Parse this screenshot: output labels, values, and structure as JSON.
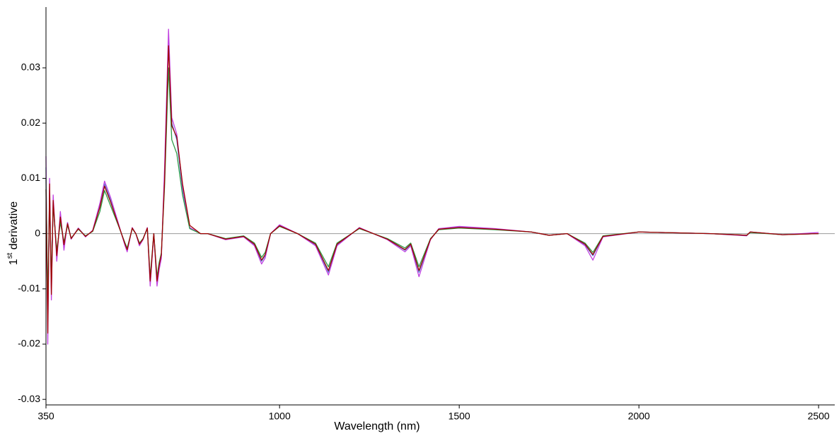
{
  "chart_data": {
    "type": "line",
    "xlabel": "Wavelength (nm)",
    "ylabel_parts": [
      "1",
      "st",
      " derivative"
    ],
    "x": [
      350,
      355,
      360,
      365,
      370,
      380,
      390,
      400,
      410,
      420,
      440,
      460,
      480,
      500,
      513,
      530,
      550,
      570,
      576,
      590,
      600,
      610,
      620,
      632,
      640,
      650,
      659,
      665,
      671,
      680,
      691,
      700,
      714,
      730,
      750,
      780,
      800,
      850,
      900,
      930,
      950,
      960,
      975,
      1000,
      1050,
      1100,
      1136,
      1160,
      1222,
      1300,
      1349,
      1365,
      1388,
      1420,
      1443,
      1500,
      1600,
      1700,
      1750,
      1800,
      1850,
      1872,
      1900,
      2000,
      2200,
      2300,
      2310,
      2400,
      2500
    ],
    "series": [
      {
        "color": "#4a86d8",
        "values": [
          0.012,
          -0.015,
          0.008,
          -0.01,
          0.006,
          -0.004,
          0.003,
          -0.002,
          0.002,
          -0.001,
          0.001,
          -0.0005,
          0.0005,
          0.005,
          0.009,
          0.006,
          0.002,
          -0.002,
          -0.003,
          0.001,
          0,
          -0.002,
          -0.001,
          0.001,
          -0.009,
          0,
          -0.009,
          -0.006,
          -0.004,
          0.01,
          0.035,
          0.02,
          0.017,
          0.008,
          0.001,
          0,
          0,
          -0.001,
          -0.0005,
          -0.002,
          -0.005,
          -0.004,
          0,
          0.0015,
          0,
          -0.002,
          -0.007,
          -0.002,
          0.001,
          -0.001,
          -0.003,
          -0.002,
          -0.007,
          -0.001,
          0.0008,
          0.0012,
          0.0008,
          0.0003,
          -0.0003,
          0,
          -0.002,
          -0.004,
          -0.0005,
          0.0003,
          0,
          -0.0003,
          0.0003,
          -0.0002,
          0
        ]
      },
      {
        "color": "#c040e0",
        "values": [
          0.014,
          -0.02,
          0.01,
          -0.012,
          0.007,
          -0.005,
          0.004,
          -0.003,
          0.002,
          -0.001,
          0.001,
          -0.0006,
          0.0006,
          0.0055,
          0.0095,
          0.0065,
          0.0022,
          -0.0022,
          -0.0033,
          0.0011,
          0,
          -0.0022,
          -0.0011,
          0.0011,
          -0.0095,
          0,
          -0.0095,
          -0.0065,
          -0.0045,
          0.012,
          0.037,
          0.021,
          0.018,
          0.0085,
          0.0011,
          0,
          0,
          -0.0011,
          -0.0006,
          -0.0022,
          -0.0055,
          -0.0044,
          0,
          0.0016,
          0,
          -0.0022,
          -0.0075,
          -0.0022,
          0.0011,
          -0.0011,
          -0.0033,
          -0.0022,
          -0.0078,
          -0.0011,
          0.0009,
          0.0013,
          0.0009,
          0.0003,
          -0.0003,
          0,
          -0.0022,
          -0.0048,
          -0.0006,
          0.0003,
          0,
          -0.0004,
          0.0003,
          -0.0002,
          0.0002
        ]
      },
      {
        "color": "#2e9a48",
        "values": [
          0.01,
          -0.012,
          0.006,
          -0.008,
          0.005,
          -0.003,
          0.002,
          -0.0015,
          0.0015,
          -0.0008,
          0.0008,
          -0.0004,
          0.0004,
          0.004,
          0.0078,
          0.005,
          0.0017,
          -0.0017,
          -0.0026,
          0.0009,
          0,
          -0.0017,
          -0.0009,
          0.0009,
          -0.0078,
          0,
          -0.0078,
          -0.0052,
          -0.0035,
          0.0085,
          0.03,
          0.017,
          0.0145,
          0.007,
          0.0009,
          0,
          0,
          -0.0009,
          -0.0004,
          -0.0017,
          -0.0043,
          -0.0034,
          0,
          0.0013,
          0,
          -0.0017,
          -0.006,
          -0.0017,
          0.0009,
          -0.0009,
          -0.0026,
          -0.0017,
          -0.006,
          -0.0009,
          0.0007,
          0.001,
          0.0007,
          0.0003,
          -0.0003,
          0,
          -0.0017,
          -0.0034,
          -0.0004,
          0.0003,
          0,
          -0.0003,
          0.0002,
          -0.0002,
          0
        ]
      },
      {
        "color": "#a00000",
        "values": [
          0.008,
          -0.018,
          0.009,
          -0.011,
          0.006,
          -0.004,
          0.003,
          -0.002,
          0.0018,
          -0.0009,
          0.0009,
          -0.0005,
          0.0005,
          0.0048,
          0.0086,
          0.0057,
          0.0019,
          -0.0019,
          -0.0029,
          0.001,
          0,
          -0.0019,
          -0.001,
          0.001,
          -0.0086,
          0,
          -0.0086,
          -0.0057,
          -0.0038,
          0.0095,
          0.034,
          0.0195,
          0.0175,
          0.009,
          0.0015,
          0,
          0,
          -0.001,
          -0.0005,
          -0.0019,
          -0.0048,
          -0.0038,
          0,
          0.0014,
          0,
          -0.0019,
          -0.0067,
          -0.0019,
          0.001,
          -0.001,
          -0.0029,
          -0.0019,
          -0.0067,
          -0.001,
          0.0008,
          0.0011,
          0.0008,
          0.0003,
          -0.0003,
          0,
          -0.0019,
          -0.0038,
          -0.0005,
          0.0003,
          0,
          -0.0003,
          0.0003,
          -0.0002,
          0
        ]
      }
    ],
    "xlim": [
      350,
      2545
    ],
    "ylim": [
      -0.031,
      0.041
    ],
    "xticks": [
      350,
      1000,
      1500,
      2000,
      2500
    ],
    "yticks": [
      -0.03,
      -0.02,
      -0.01,
      0,
      0.01,
      0.02,
      0.03
    ],
    "zero_line": true
  }
}
